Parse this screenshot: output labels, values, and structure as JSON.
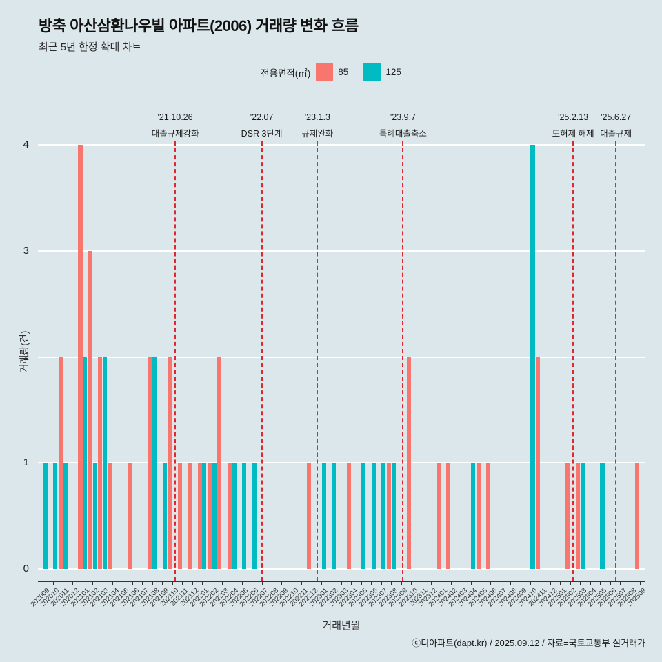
{
  "header": {
    "title": "방축 아산삼환나우빌 아파트(2006) 거래량 변화 흐름",
    "subtitle": "최근 5년 한정 확대 차트"
  },
  "legend": {
    "title": "전용면적(㎡)",
    "items": [
      {
        "label": "85",
        "color": "#f8766d"
      },
      {
        "label": "125",
        "color": "#00bcc2"
      }
    ]
  },
  "chart_data": {
    "type": "bar",
    "title": "방축 아산삼환나우빌 아파트(2006) 거래량 변화 흐름",
    "xlabel": "거래년월",
    "ylabel": "거래량(건)",
    "ylim": [
      0,
      4
    ],
    "yticks": [
      0,
      1,
      2,
      3,
      4
    ],
    "grid": "horizontal-white",
    "legend_position": "top-center",
    "categories": [
      "202009",
      "202010",
      "202011",
      "202012",
      "202101",
      "202102",
      "202103",
      "202104",
      "202105",
      "202106",
      "202107",
      "202108",
      "202109",
      "202110",
      "202111",
      "202112",
      "202201",
      "202202",
      "202203",
      "202204",
      "202205",
      "202206",
      "202207",
      "202208",
      "202209",
      "202210",
      "202211",
      "202212",
      "202301",
      "202302",
      "202303",
      "202304",
      "202305",
      "202306",
      "202307",
      "202308",
      "202309",
      "202310",
      "202311",
      "202312",
      "202401",
      "202402",
      "202403",
      "202404",
      "202405",
      "202406",
      "202407",
      "202408",
      "202409",
      "202410",
      "202411",
      "202412",
      "202501",
      "202502",
      "202503",
      "202504",
      "202505",
      "202506",
      "202507",
      "202508",
      "202509"
    ],
    "series": [
      {
        "name": "85",
        "color": "#f8766d",
        "values": [
          0,
          0,
          2,
          0,
          4,
          3,
          2,
          1,
          0,
          1,
          0,
          2,
          0,
          2,
          1,
          1,
          1,
          1,
          2,
          1,
          0,
          0,
          0,
          0,
          0,
          0,
          0,
          1,
          0,
          0,
          0,
          1,
          0,
          0,
          0,
          1,
          0,
          2,
          0,
          0,
          1,
          1,
          0,
          0,
          1,
          1,
          0,
          0,
          0,
          0,
          2,
          0,
          0,
          1,
          1,
          0,
          0,
          0,
          0,
          0,
          1
        ]
      },
      {
        "name": "125",
        "color": "#00bcc2",
        "values": [
          1,
          1,
          1,
          0,
          2,
          1,
          2,
          0,
          0,
          0,
          0,
          2,
          1,
          0,
          0,
          0,
          1,
          1,
          0,
          1,
          1,
          1,
          0,
          0,
          0,
          0,
          0,
          0,
          1,
          1,
          0,
          0,
          1,
          1,
          1,
          1,
          0,
          0,
          0,
          0,
          0,
          0,
          0,
          1,
          0,
          0,
          0,
          0,
          0,
          4,
          0,
          0,
          0,
          0,
          1,
          0,
          1,
          0,
          0,
          0,
          0
        ]
      }
    ],
    "events": [
      {
        "date": "'21.10.26",
        "label": "대출규제강화",
        "month_index": 13.3
      },
      {
        "date": "'22.07",
        "label": "DSR 3단계",
        "month_index": 22.0
      },
      {
        "date": "'23.1.3",
        "label": "규제완화",
        "month_index": 27.6
      },
      {
        "date": "'23.9.7",
        "label": "특례대출축소",
        "month_index": 36.2
      },
      {
        "date": "'25.2.13",
        "label": "토허제 해제",
        "month_index": 53.3
      },
      {
        "date": "'25.6.27",
        "label": "대출규제",
        "month_index": 57.6
      }
    ]
  },
  "footer": {
    "credit": "ⓒ디아파트(dapt.kr) / 2025.09.12 / 자료=국토교통부 실거래가"
  },
  "colors": {
    "background": "#dbe7eb",
    "bar_85": "#f8766d",
    "bar_125": "#00bcc2",
    "event_line": "#e3262b",
    "grid": "#ffffff",
    "text": "#1c1c1c"
  }
}
